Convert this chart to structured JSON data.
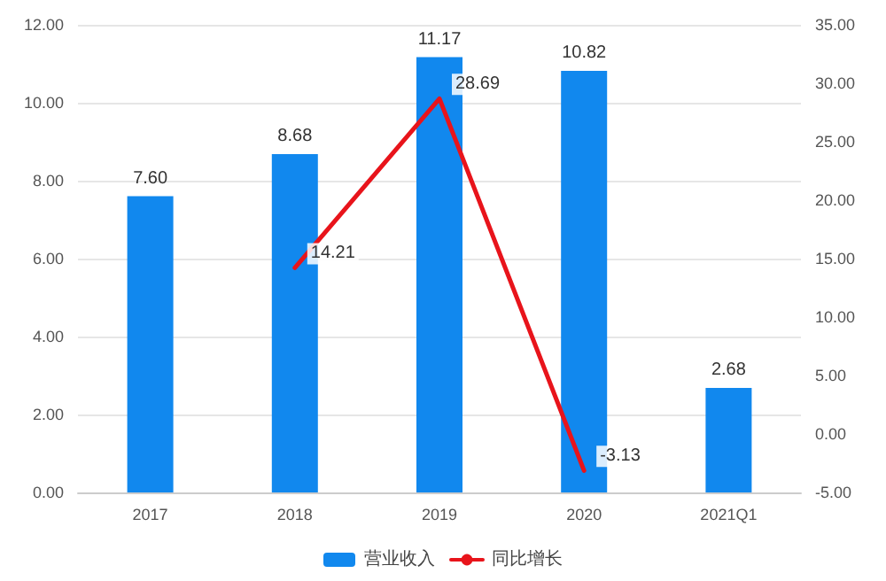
{
  "chart_data": {
    "type": "bar",
    "categories": [
      "2017",
      "2018",
      "2019",
      "2020",
      "2021Q1"
    ],
    "series": [
      {
        "name": "营业收入",
        "color": "#1188ee",
        "values": [
          7.6,
          8.68,
          11.17,
          10.82,
          2.68
        ],
        "value_labels": [
          "7.60",
          "8.68",
          "11.17",
          "10.82",
          "2.68"
        ]
      },
      {
        "name": "同比增长",
        "type": "line",
        "axis": "y2",
        "color": "#e8141b",
        "values": [
          null,
          14.21,
          28.69,
          -3.13,
          null
        ],
        "value_labels": [
          null,
          "14.21",
          "28.69",
          "-3.13",
          null
        ]
      }
    ],
    "ylim": [
      0,
      12
    ],
    "yticks": [
      {
        "value": 0,
        "label": "0.00"
      },
      {
        "value": 2,
        "label": "2.00"
      },
      {
        "value": 4,
        "label": "4.00"
      },
      {
        "value": 6,
        "label": "6.00"
      },
      {
        "value": 8,
        "label": "8.00"
      },
      {
        "value": 10,
        "label": "10.00"
      },
      {
        "value": 12,
        "label": "12.00"
      }
    ],
    "y2lim": [
      -5,
      35
    ],
    "y2ticks": [
      {
        "value": -5,
        "label": "-5.00"
      },
      {
        "value": 0,
        "label": "0.00"
      },
      {
        "value": 5,
        "label": "5.00"
      },
      {
        "value": 10,
        "label": "10.00"
      },
      {
        "value": 15,
        "label": "15.00"
      },
      {
        "value": 20,
        "label": "20.00"
      },
      {
        "value": 25,
        "label": "25.00"
      },
      {
        "value": 30,
        "label": "30.00"
      },
      {
        "value": 35,
        "label": "35.00"
      }
    ],
    "grid": "y",
    "legend": "bottom",
    "marker": "none",
    "line_style": "solid"
  }
}
